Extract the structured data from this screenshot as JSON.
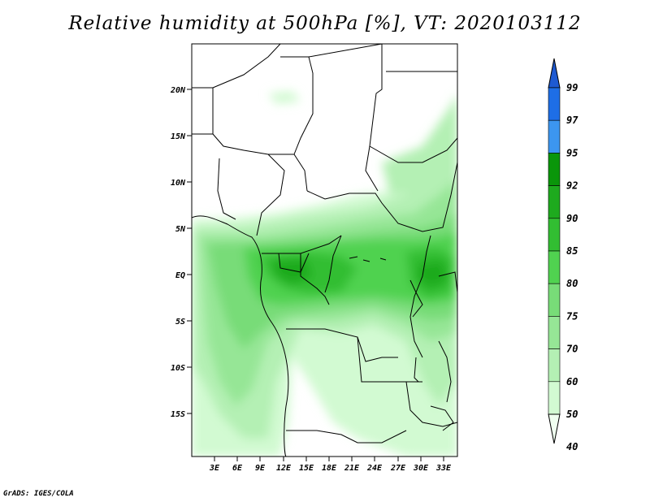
{
  "title": "Relative humidity at 500hPa [%], VT: 2020103112",
  "footer": "GrADS: IGES/COLA",
  "map": {
    "lat_ticks": [
      "20N",
      "15N",
      "10N",
      "5N",
      "EQ",
      "5S",
      "10S",
      "15S"
    ],
    "lon_ticks": [
      "3E",
      "6E",
      "9E",
      "12E",
      "15E",
      "18E",
      "21E",
      "24E",
      "27E",
      "30E",
      "33E"
    ]
  },
  "colorbar": {
    "labels": [
      "99",
      "97",
      "95",
      "92",
      "90",
      "85",
      "80",
      "75",
      "70",
      "60",
      "50",
      "40"
    ],
    "colors": [
      "#1e5ad2",
      "#1e6ee6",
      "#3c96f0",
      "#0a960a",
      "#1eaa1e",
      "#32be32",
      "#50d250",
      "#78dc78",
      "#96e696",
      "#b4f0b4",
      "#d2fad2",
      "#f0fff0"
    ]
  }
}
